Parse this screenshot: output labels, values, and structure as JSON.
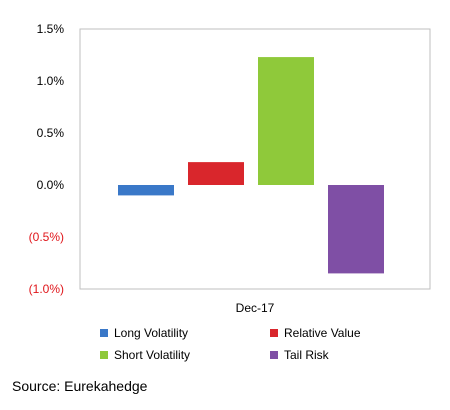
{
  "chart_data": {
    "type": "bar",
    "categories": [
      "Dec-17"
    ],
    "series": [
      {
        "name": "Long Volatility",
        "values": [
          -0.1
        ],
        "color": "#3a78c8"
      },
      {
        "name": "Relative Value",
        "values": [
          0.22
        ],
        "color": "#d9262c"
      },
      {
        "name": "Short Volatility",
        "values": [
          1.23
        ],
        "color": "#8fc93a"
      },
      {
        "name": "Tail Risk",
        "values": [
          -0.85
        ],
        "color": "#7f4fa5"
      }
    ],
    "yticks": [
      "1.5%",
      "1.0%",
      "0.5%",
      "0.0%",
      "(0.5%)",
      "(1.0%)"
    ],
    "ytick_values": [
      1.5,
      1.0,
      0.5,
      0.0,
      -0.5,
      -1.0
    ],
    "ylim": [
      -1.0,
      1.5
    ],
    "grid": false,
    "legend_position": "bottom",
    "negative_tick_color": "#e0161b"
  },
  "source": "Source: Eurekahedge"
}
